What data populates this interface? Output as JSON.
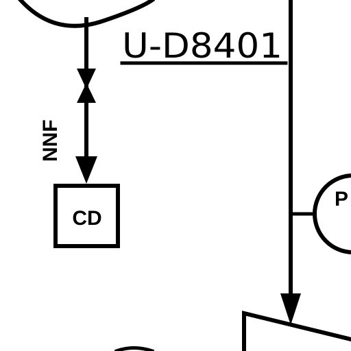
{
  "diagram": {
    "unit_tag": "U-D8401",
    "line_label": "NNF",
    "box_label": "CD",
    "instrument_label": "P",
    "colors": {
      "line": "#000000",
      "background": "#ffffff"
    }
  }
}
